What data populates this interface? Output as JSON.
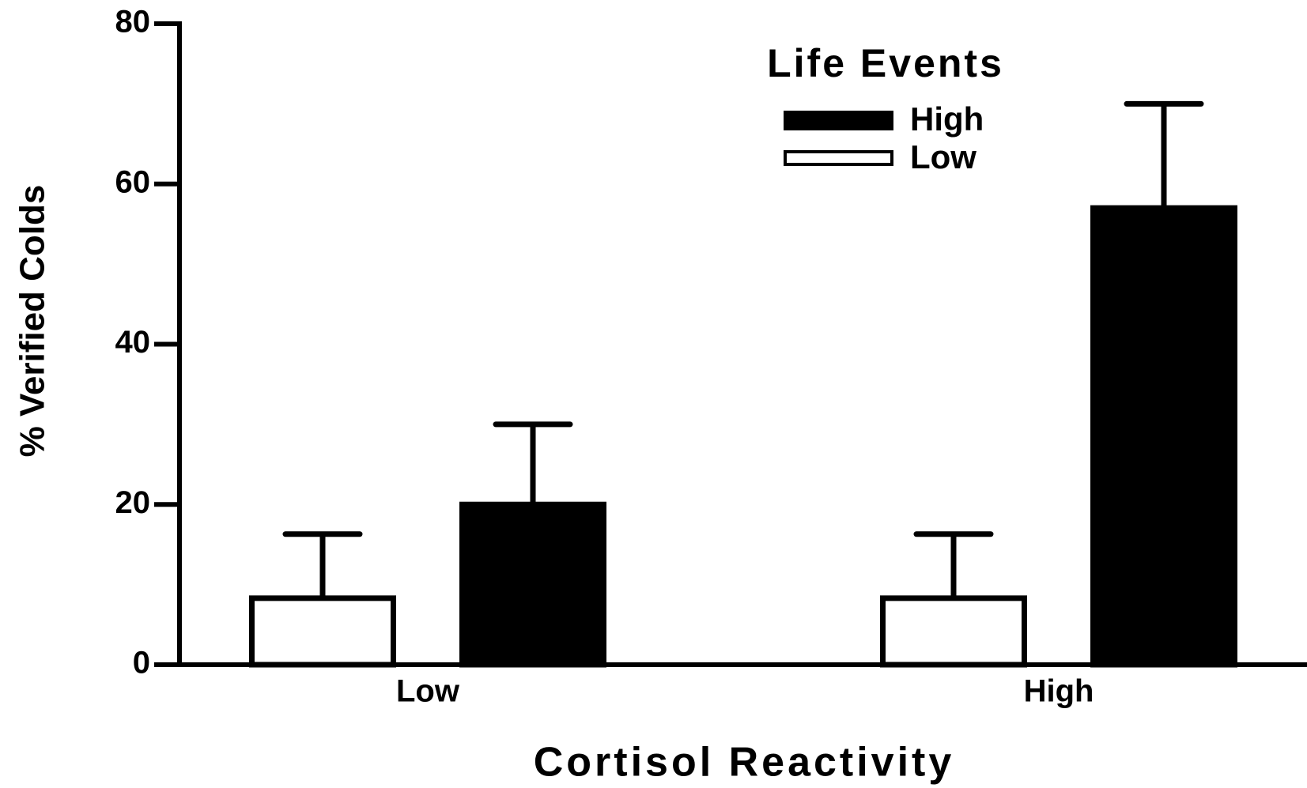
{
  "chart_data": {
    "type": "bar",
    "categories": [
      "Low",
      "High"
    ],
    "series": [
      {
        "name": "High",
        "color": "#000000",
        "values": [
          20,
          57
        ],
        "errors": [
          10,
          13
        ]
      },
      {
        "name": "Low",
        "color": "#ffffff",
        "values": [
          8.3,
          8.3
        ],
        "errors": [
          8,
          8
        ]
      }
    ],
    "legend_title": "Life Events",
    "xlabel": "Cortisol Reactivity",
    "ylabel": "% Verified Colds",
    "ylim": [
      0,
      80
    ],
    "yticks": [
      0,
      20,
      40,
      60,
      80
    ]
  }
}
